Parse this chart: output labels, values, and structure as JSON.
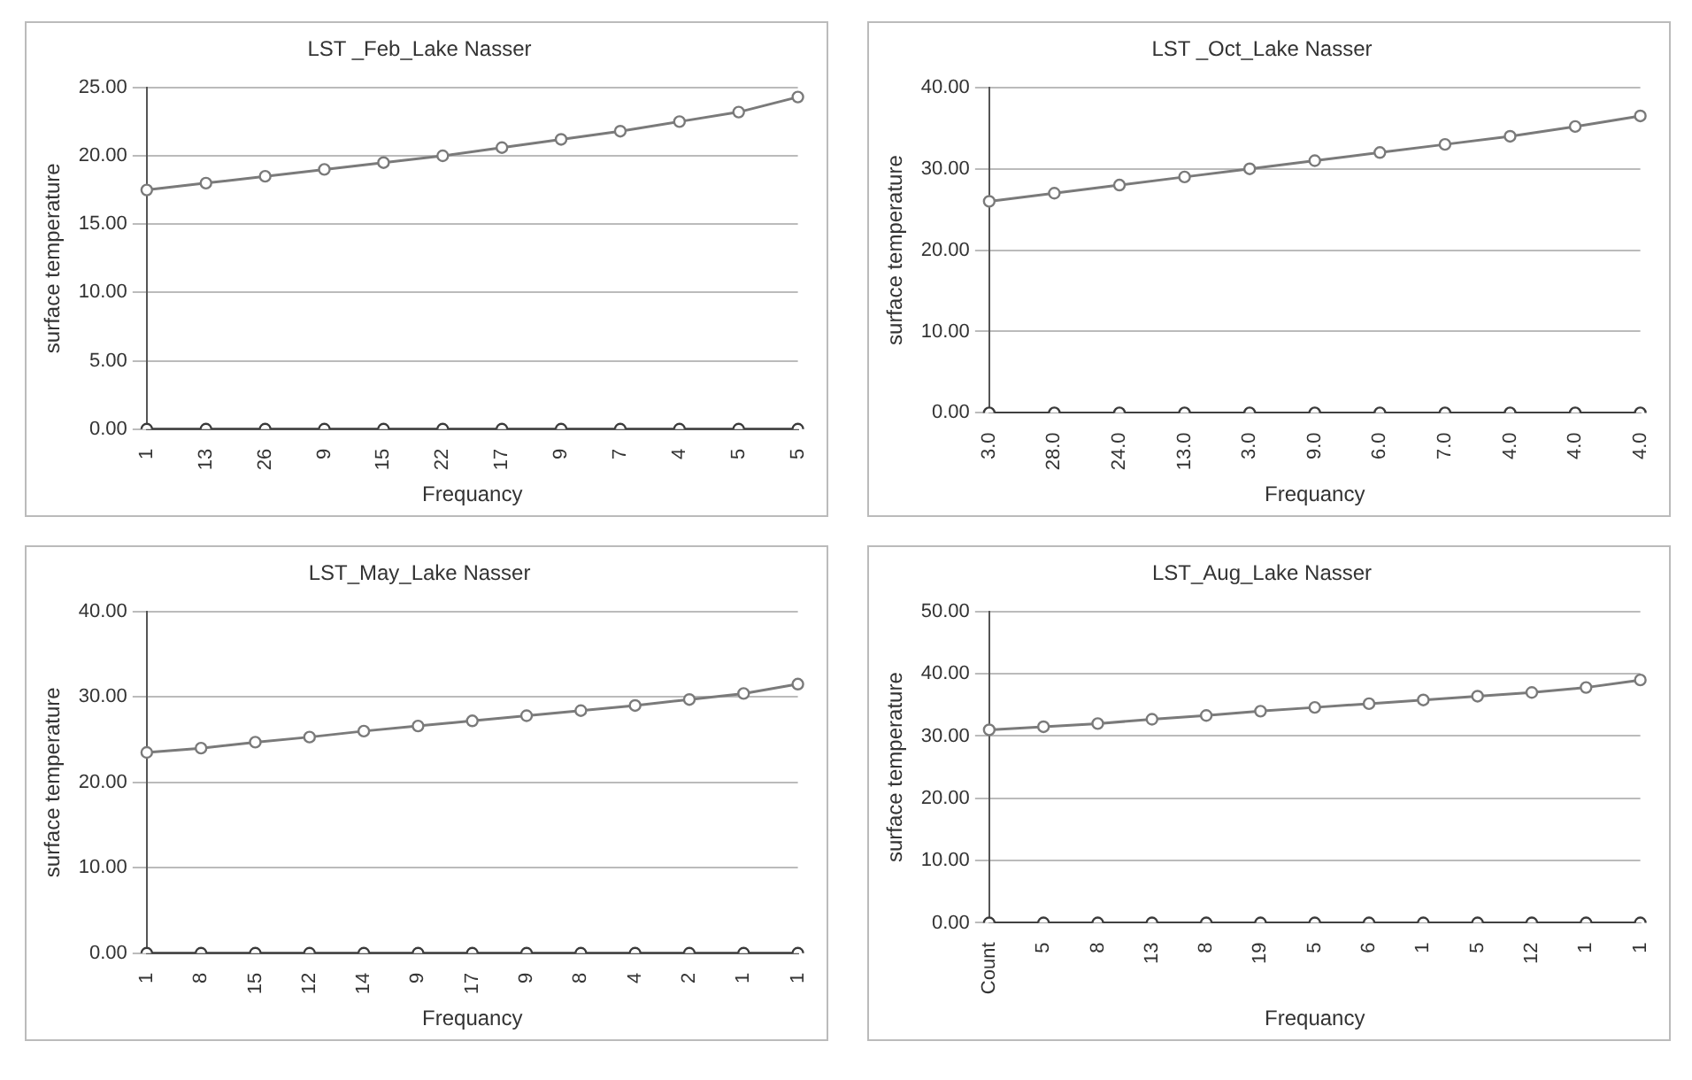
{
  "chart_data": [
    {
      "type": "line",
      "title": "LST _Feb_Lake Nasser",
      "xlabel": "Frequancy",
      "ylabel": "surface temperature",
      "categories": [
        "1",
        "13",
        "26",
        "9",
        "15",
        "22",
        "17",
        "9",
        "7",
        "4",
        "5",
        "5"
      ],
      "series": [
        {
          "color": "#7a7a7a",
          "values": [
            17.5,
            18.0,
            18.5,
            19.0,
            19.5,
            20.0,
            20.6,
            21.2,
            21.8,
            22.5,
            23.2,
            24.3
          ]
        },
        {
          "color": "#3a3a3a",
          "values": [
            0,
            0,
            0,
            0,
            0,
            0,
            0,
            0,
            0,
            0,
            0,
            0
          ]
        }
      ],
      "ylim": [
        0,
        25
      ],
      "yticks": [
        {
          "value": 0,
          "label": "0.00"
        },
        {
          "value": 5,
          "label": "5.00"
        },
        {
          "value": 10,
          "label": "10.00"
        },
        {
          "value": 15,
          "label": "15.00"
        },
        {
          "value": 20,
          "label": "20.00"
        },
        {
          "value": 25,
          "label": "25.00"
        }
      ],
      "grid": "y",
      "legend": false,
      "marker": "circle"
    },
    {
      "type": "line",
      "title": "LST _Oct_Lake Nasser",
      "xlabel": "Frequancy",
      "ylabel": "surface temperature",
      "categories": [
        "3.0",
        "28.0",
        "24.0",
        "13.0",
        "3.0",
        "9.0",
        "6.0",
        "7.0",
        "4.0",
        "4.0",
        "4.0"
      ],
      "series": [
        {
          "color": "#7a7a7a",
          "values": [
            26.0,
            27.0,
            28.0,
            29.0,
            30.0,
            31.0,
            32.0,
            33.0,
            34.0,
            35.2,
            36.5
          ]
        },
        {
          "color": "#3a3a3a",
          "values": [
            0,
            0,
            0,
            0,
            0,
            0,
            0,
            0,
            0,
            0,
            0
          ]
        }
      ],
      "ylim": [
        0,
        40
      ],
      "yticks": [
        {
          "value": 0,
          "label": "0.00"
        },
        {
          "value": 10,
          "label": "10.00"
        },
        {
          "value": 20,
          "label": "20.00"
        },
        {
          "value": 30,
          "label": "30.00"
        },
        {
          "value": 40,
          "label": "40.00"
        }
      ],
      "grid": "y",
      "legend": false,
      "marker": "circle"
    },
    {
      "type": "line",
      "title": "LST_May_Lake Nasser",
      "xlabel": "Frequancy",
      "ylabel": "surface temperature",
      "categories": [
        "1",
        "8",
        "15",
        "12",
        "14",
        "9",
        "17",
        "9",
        "8",
        "4",
        "2",
        "1",
        "1"
      ],
      "series": [
        {
          "color": "#7a7a7a",
          "values": [
            23.5,
            24.0,
            24.7,
            25.3,
            26.0,
            26.6,
            27.2,
            27.8,
            28.4,
            29.0,
            29.7,
            30.4,
            31.5
          ]
        },
        {
          "color": "#3a3a3a",
          "values": [
            0,
            0,
            0,
            0,
            0,
            0,
            0,
            0,
            0,
            0,
            0,
            0,
            0
          ]
        }
      ],
      "ylim": [
        0,
        40
      ],
      "yticks": [
        {
          "value": 0,
          "label": "0.00"
        },
        {
          "value": 10,
          "label": "10.00"
        },
        {
          "value": 20,
          "label": "20.00"
        },
        {
          "value": 30,
          "label": "30.00"
        },
        {
          "value": 40,
          "label": "40.00"
        }
      ],
      "grid": "y",
      "legend": false,
      "marker": "circle"
    },
    {
      "type": "line",
      "title": "LST_Aug_Lake Nasser",
      "xlabel": "Frequancy",
      "ylabel": "surface temperature",
      "categories": [
        "Count",
        "5",
        "8",
        "13",
        "8",
        "19",
        "5",
        "6",
        "1",
        "5",
        "12",
        "1",
        "1"
      ],
      "series": [
        {
          "color": "#7a7a7a",
          "values": [
            31.0,
            31.5,
            32.0,
            32.7,
            33.3,
            34.0,
            34.6,
            35.2,
            35.8,
            36.4,
            37.0,
            37.8,
            39.0
          ]
        },
        {
          "color": "#3a3a3a",
          "values": [
            0,
            0,
            0,
            0,
            0,
            0,
            0,
            0,
            0,
            0,
            0,
            0,
            0
          ]
        }
      ],
      "ylim": [
        0,
        50
      ],
      "yticks": [
        {
          "value": 0,
          "label": "0.00"
        },
        {
          "value": 10,
          "label": "10.00"
        },
        {
          "value": 20,
          "label": "20.00"
        },
        {
          "value": 30,
          "label": "30.00"
        },
        {
          "value": 40,
          "label": "40.00"
        },
        {
          "value": 50,
          "label": "50.00"
        }
      ],
      "grid": "y",
      "legend": false,
      "marker": "circle"
    }
  ]
}
